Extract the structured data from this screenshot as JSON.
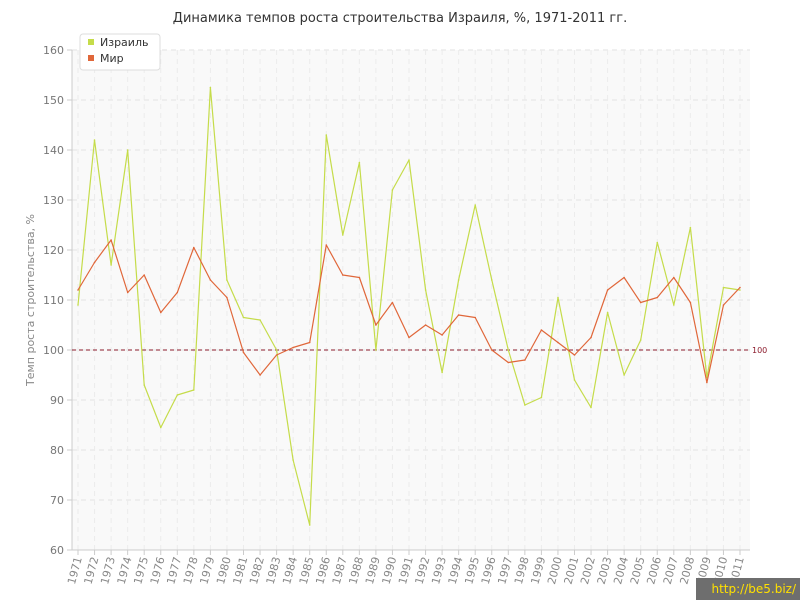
{
  "chart_data": {
    "type": "line",
    "title": "Динамика темпов роста строительства Израиля, %, 1971-2011 гг.",
    "ylabel": "Темп роста строительства, %",
    "xlabel": "",
    "ylim": [
      60,
      160
    ],
    "yticks": [
      "60",
      "70",
      "80",
      "90",
      "100",
      "110",
      "120",
      "130",
      "140",
      "150",
      "160"
    ],
    "grid": true,
    "legend_position": "top-left",
    "reference_line": {
      "value": 100,
      "label": "100",
      "color": "#8b1a2b"
    },
    "x": [
      "1971",
      "1972",
      "1973",
      "1974",
      "1975",
      "1976",
      "1977",
      "1978",
      "1979",
      "1980",
      "1981",
      "1982",
      "1983",
      "1984",
      "1985",
      "1986",
      "1987",
      "1988",
      "1989",
      "1990",
      "1991",
      "1992",
      "1993",
      "1994",
      "1995",
      "1996",
      "1997",
      "1998",
      "1999",
      "2000",
      "2001",
      "2002",
      "2003",
      "2004",
      "2005",
      "2006",
      "2007",
      "2008",
      "2009",
      "2010",
      "2011"
    ],
    "series": [
      {
        "name": "Израиль",
        "color": "#c5dc4a",
        "values": [
          109,
          142,
          117,
          140,
          93,
          84.5,
          91,
          92,
          152.5,
          114,
          106.5,
          106,
          100,
          78,
          65,
          143,
          123,
          137.5,
          100,
          132,
          138,
          112,
          95.5,
          114,
          129,
          114,
          100,
          89,
          90.5,
          110.5,
          94,
          88.5,
          107.5,
          95,
          102,
          121.5,
          109,
          124.5,
          94.5,
          112.5,
          112
        ]
      },
      {
        "name": "Мир",
        "color": "#e0673a",
        "values": [
          112,
          117.5,
          122,
          111.5,
          115,
          107.5,
          111.5,
          120.5,
          114,
          110.5,
          99.5,
          95,
          99,
          100.5,
          101.5,
          121,
          115,
          114.5,
          105,
          109.5,
          102.5,
          105,
          103,
          107,
          106.5,
          100,
          97.5,
          98,
          104,
          101.5,
          99,
          102.5,
          112,
          114.5,
          109.5,
          110.5,
          114.5,
          109.5,
          93.5,
          109,
          112.5
        ]
      }
    ]
  },
  "watermark": "http://be5.biz/"
}
